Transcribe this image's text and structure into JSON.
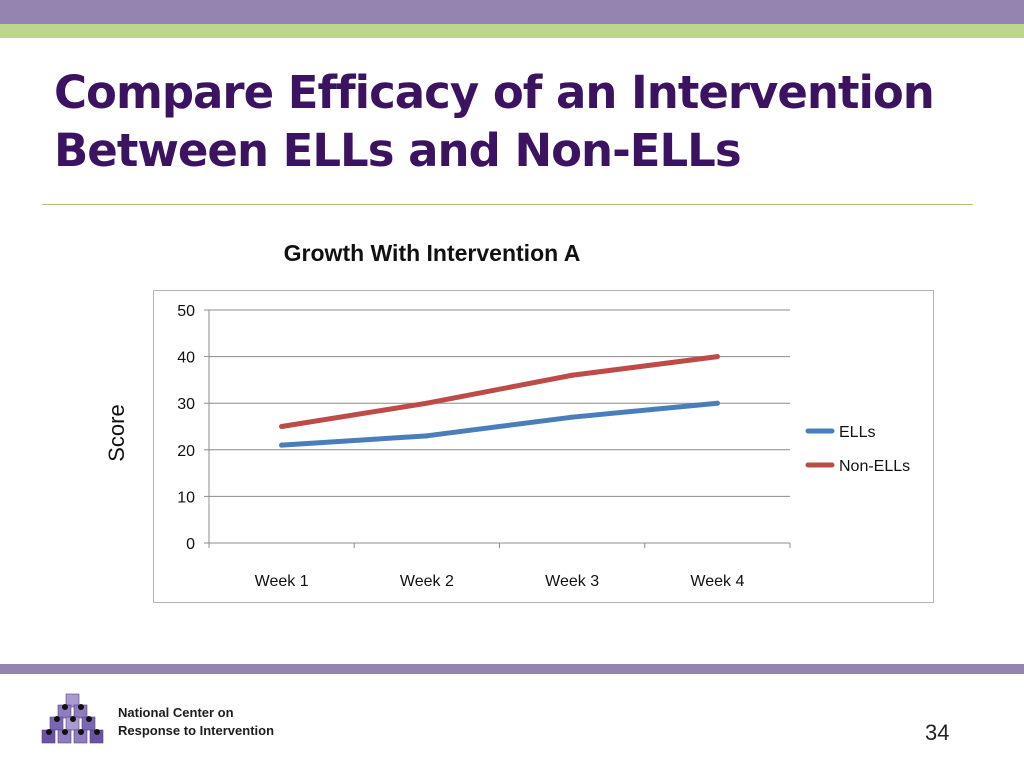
{
  "slide": {
    "title_line1": "Compare Efficacy of an Intervention",
    "title_line2": "Between ELLs and Non-ELLs",
    "org_line1": "National Center on",
    "org_line2": "Response to Intervention",
    "page_number": "34"
  },
  "colors": {
    "top_bar": "#9484b0",
    "accent_bar": "#bcd68f",
    "title": "#3b1361",
    "ells": "#4a7ebb",
    "non_ells": "#be4b48"
  },
  "chart_data": {
    "type": "line",
    "title": "Growth With Intervention A",
    "xlabel": "",
    "ylabel": "Score",
    "categories": [
      "Week 1",
      "Week 2",
      "Week 3",
      "Week 4"
    ],
    "ylim": [
      0,
      50
    ],
    "yticks": [
      "0",
      "10",
      "20",
      "30",
      "40",
      "50"
    ],
    "grid": true,
    "legend": "right",
    "series": [
      {
        "name": "ELLs",
        "values": [
          21,
          23,
          27,
          30
        ],
        "color": "#4a7ebb"
      },
      {
        "name": "Non-ELLs",
        "values": [
          25,
          30,
          36,
          40
        ],
        "color": "#be4b48"
      }
    ]
  }
}
